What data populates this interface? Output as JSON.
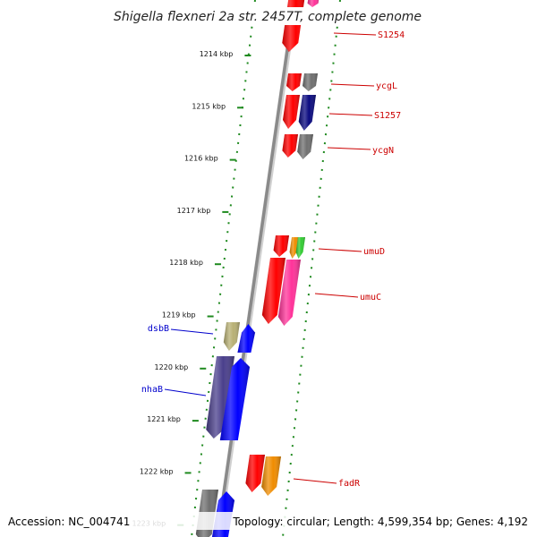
{
  "title": "Shigella flexneri 2a str. 2457T, complete genome",
  "footer": {
    "accession": "Accession: NC_004741",
    "topology": "Topology: circular; Length: 4,599,354 bp; Genes: 4,192"
  },
  "ticks": [
    "1214 kbp",
    "1215 kbp",
    "1216 kbp",
    "1217 kbp",
    "1218 kbp",
    "1219 kbp",
    "1220 kbp",
    "1221 kbp",
    "1222 kbp",
    "1223 kbp"
  ],
  "gene_labels": [
    {
      "text": "S1254",
      "color": "#cc0000"
    },
    {
      "text": "ycgL",
      "color": "#cc0000"
    },
    {
      "text": "S1257",
      "color": "#cc0000"
    },
    {
      "text": "ycgN",
      "color": "#cc0000"
    },
    {
      "text": "umuD",
      "color": "#cc0000"
    },
    {
      "text": "umuC",
      "color": "#cc0000"
    },
    {
      "text": "dsbB",
      "color": "#0000cc"
    },
    {
      "text": "nhaB",
      "color": "#0000cc"
    },
    {
      "text": "fadR",
      "color": "#cc0000"
    }
  ],
  "colors": {
    "backbone": "#8a8a8a",
    "tick_line": "#1f8a1f",
    "red": "#ff0000",
    "gray": "#707070",
    "navy": "#0a0a80",
    "orange": "#f08c00",
    "green": "#33cc33",
    "pink": "#ff3399",
    "khaki": "#b8b074",
    "blue": "#0000ff",
    "slate": "#4a3f8c"
  }
}
